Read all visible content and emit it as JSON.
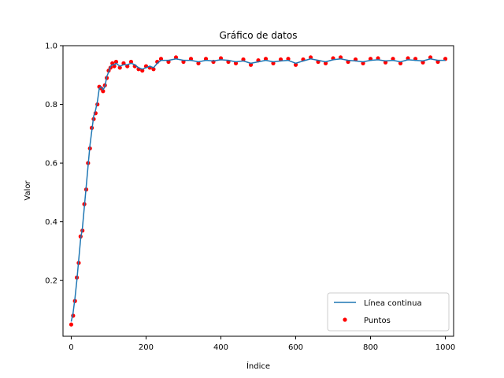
{
  "chart_data": {
    "type": "line+scatter",
    "title": "Gráfico de datos",
    "xlabel": "Índice",
    "ylabel": "Valor",
    "xlim": [
      -22,
      1022
    ],
    "ylim": [
      0.01,
      1.0
    ],
    "xticks": [
      0,
      200,
      400,
      600,
      800,
      1000
    ],
    "yticks": [
      0.2,
      0.4,
      0.6,
      0.8,
      1.0
    ],
    "xtick_labels": [
      "0",
      "200",
      "400",
      "600",
      "800",
      "1000"
    ],
    "ytick_labels": [
      "0.2",
      "0.4",
      "0.6",
      "0.8",
      "1.0"
    ],
    "grid": false,
    "legend_position": "lower-right",
    "series": [
      {
        "name": "Línea continua",
        "kind": "line",
        "color": "#1f77b4",
        "x": [
          0,
          5,
          10,
          15,
          20,
          25,
          30,
          35,
          40,
          45,
          50,
          55,
          60,
          65,
          70,
          75,
          80,
          85,
          90,
          95,
          100,
          105,
          110,
          115,
          120,
          130,
          140,
          150,
          160,
          170,
          180,
          190,
          200,
          210,
          220,
          230,
          240,
          260,
          280,
          300,
          320,
          340,
          360,
          380,
          400,
          420,
          440,
          460,
          480,
          500,
          520,
          540,
          560,
          580,
          600,
          620,
          640,
          660,
          680,
          700,
          720,
          740,
          760,
          780,
          800,
          820,
          840,
          860,
          880,
          900,
          920,
          940,
          960,
          980,
          1000
        ],
        "y": [
          0.06,
          0.09,
          0.14,
          0.2,
          0.27,
          0.34,
          0.38,
          0.45,
          0.52,
          0.59,
          0.66,
          0.71,
          0.76,
          0.78,
          0.81,
          0.855,
          0.86,
          0.85,
          0.86,
          0.895,
          0.91,
          0.93,
          0.935,
          0.935,
          0.94,
          0.93,
          0.935,
          0.935,
          0.94,
          0.935,
          0.925,
          0.92,
          0.925,
          0.93,
          0.925,
          0.94,
          0.95,
          0.95,
          0.955,
          0.95,
          0.95,
          0.945,
          0.95,
          0.948,
          0.952,
          0.95,
          0.945,
          0.948,
          0.94,
          0.945,
          0.95,
          0.945,
          0.948,
          0.95,
          0.94,
          0.948,
          0.955,
          0.95,
          0.945,
          0.952,
          0.955,
          0.95,
          0.948,
          0.945,
          0.95,
          0.952,
          0.948,
          0.95,
          0.945,
          0.952,
          0.95,
          0.948,
          0.955,
          0.95,
          0.95
        ]
      },
      {
        "name": "Puntos",
        "kind": "scatter",
        "color": "#ff0000",
        "x": [
          0,
          5,
          10,
          15,
          20,
          25,
          30,
          35,
          40,
          45,
          50,
          55,
          60,
          65,
          70,
          75,
          80,
          85,
          90,
          95,
          100,
          105,
          110,
          115,
          120,
          130,
          140,
          150,
          160,
          170,
          180,
          190,
          200,
          210,
          220,
          230,
          240,
          260,
          280,
          300,
          320,
          340,
          360,
          380,
          400,
          420,
          440,
          460,
          480,
          500,
          520,
          540,
          560,
          580,
          600,
          620,
          640,
          660,
          680,
          700,
          720,
          740,
          760,
          780,
          800,
          820,
          840,
          860,
          880,
          900,
          920,
          940,
          960,
          980,
          1000
        ],
        "y": [
          0.05,
          0.08,
          0.13,
          0.21,
          0.26,
          0.35,
          0.37,
          0.46,
          0.51,
          0.6,
          0.65,
          0.72,
          0.75,
          0.77,
          0.8,
          0.86,
          0.855,
          0.845,
          0.865,
          0.89,
          0.915,
          0.925,
          0.94,
          0.93,
          0.945,
          0.925,
          0.94,
          0.93,
          0.945,
          0.93,
          0.92,
          0.915,
          0.93,
          0.925,
          0.92,
          0.945,
          0.955,
          0.945,
          0.96,
          0.945,
          0.955,
          0.94,
          0.955,
          0.945,
          0.957,
          0.945,
          0.94,
          0.953,
          0.935,
          0.95,
          0.955,
          0.94,
          0.953,
          0.955,
          0.935,
          0.953,
          0.96,
          0.945,
          0.94,
          0.957,
          0.96,
          0.945,
          0.953,
          0.94,
          0.955,
          0.957,
          0.943,
          0.955,
          0.94,
          0.957,
          0.955,
          0.943,
          0.96,
          0.945,
          0.955
        ]
      }
    ]
  }
}
